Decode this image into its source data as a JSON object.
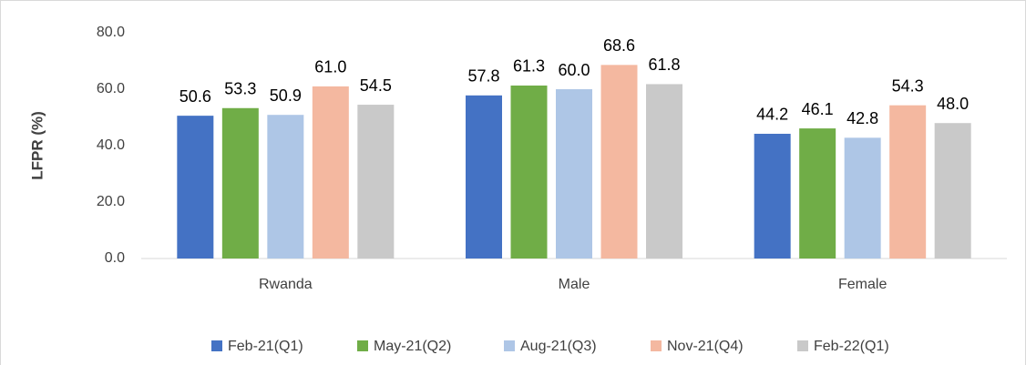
{
  "chart_data": {
    "type": "bar",
    "y_label": "LFPR (%)",
    "categories": [
      "Rwanda",
      "Male",
      "Female"
    ],
    "series": [
      {
        "name": "Feb-21(Q1)",
        "color": "#4472c4",
        "values": [
          50.6,
          57.8,
          44.2
        ],
        "value_labels": [
          "50.6",
          "57.8",
          "44.2"
        ]
      },
      {
        "name": "May-21(Q2)",
        "color": "#70ad47",
        "values": [
          53.3,
          61.3,
          46.1
        ],
        "value_labels": [
          "53.3",
          "61.3",
          "46.1"
        ]
      },
      {
        "name": "Aug-21(Q3)",
        "color": "#aec6e6",
        "values": [
          50.9,
          60,
          42.8
        ],
        "value_labels": [
          "50.9",
          "60.0",
          "42.8"
        ]
      },
      {
        "name": "Nov-21(Q4)",
        "color": "#f4b8a0",
        "values": [
          61,
          68.6,
          54.3
        ],
        "value_labels": [
          "61.0",
          "68.6",
          "54.3"
        ]
      },
      {
        "name": "Feb-22(Q1)",
        "color": "#c9c9c9",
        "values": [
          54.5,
          61.8,
          48
        ],
        "value_labels": [
          "54.5",
          "61.8",
          "48.0"
        ]
      }
    ],
    "ylim": [
      0,
      80
    ],
    "yticks": [
      {
        "value": 0,
        "label": "0.0"
      },
      {
        "value": 20,
        "label": "20.0"
      },
      {
        "value": 40,
        "label": "40.0"
      },
      {
        "value": 60,
        "label": "60.0"
      },
      {
        "value": 80,
        "label": "80.0"
      }
    ],
    "grid": false,
    "legend": "bottom"
  }
}
